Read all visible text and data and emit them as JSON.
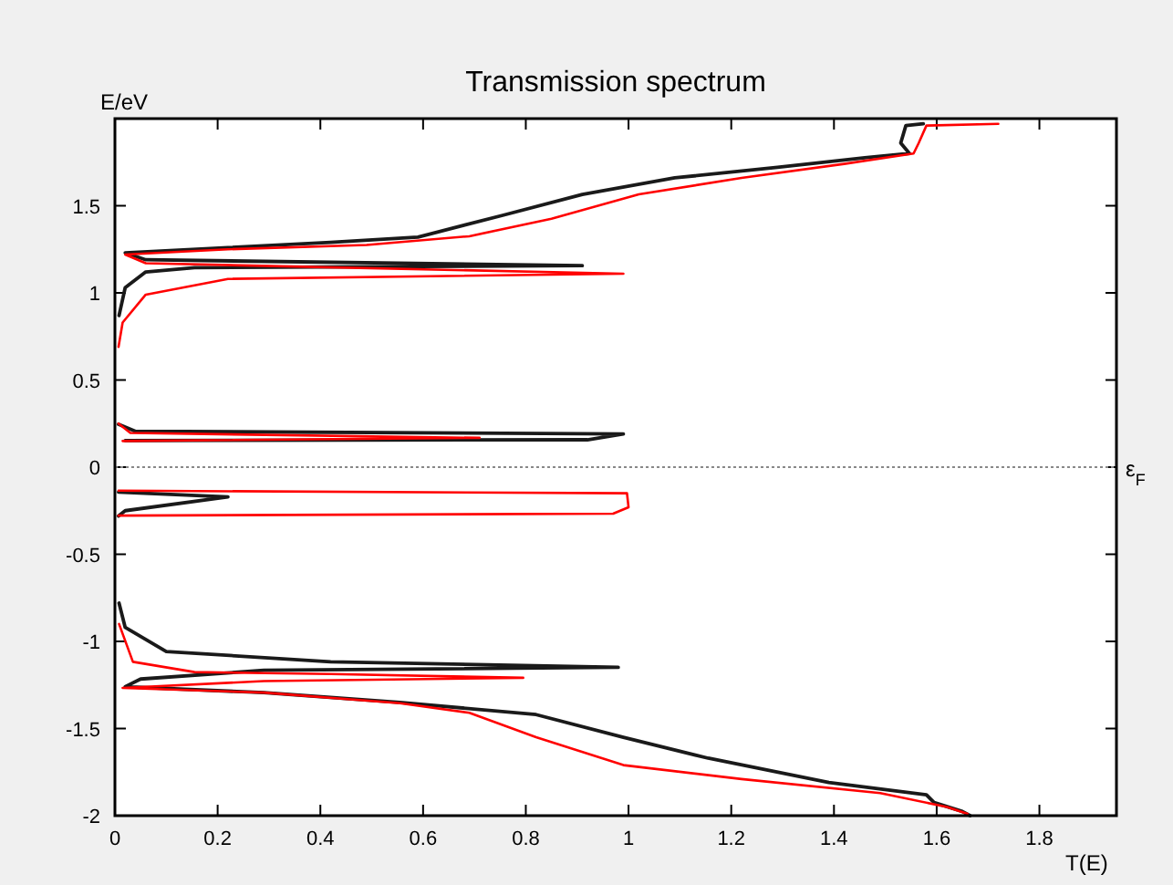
{
  "chart_data": {
    "type": "line",
    "title": "Transmission spectrum",
    "xlabel": "T(E)",
    "ylabel": "E/eV",
    "xlim": [
      0,
      1.95
    ],
    "ylim": [
      -2,
      2
    ],
    "xticks": [
      0,
      0.2,
      0.4,
      0.6,
      0.8,
      1,
      1.2,
      1.4,
      1.6,
      1.8
    ],
    "yticks": [
      -2,
      -1.5,
      -1,
      -0.5,
      0,
      0.5,
      1,
      1.5
    ],
    "ref_lines": [
      {
        "axis": "y",
        "value": 0,
        "label": "ε$_{F}$",
        "line_style": "dotted",
        "color": "#888888"
      }
    ],
    "series": [
      {
        "color": "#1a1a1a",
        "x": [
          1.574,
          1.54,
          1.53,
          1.547,
          1.46,
          1.29,
          1.09,
          0.91,
          0.755,
          0.59,
          0.42,
          0.22,
          0.02,
          0.06,
          0.91,
          0.155,
          0.06,
          0.02,
          0.008,
          null,
          0.007,
          0.04,
          0.99,
          0.92,
          0.02,
          null,
          0.007,
          0.22,
          0.02,
          0.007,
          null,
          0.008,
          0.02,
          0.1,
          0.42,
          0.98,
          0.29,
          0.05,
          0.02,
          0.29,
          0.555,
          0.82,
          0.99,
          1.155,
          1.39,
          1.58,
          1.595,
          1.65,
          1.665
        ],
        "values": [
          1.97,
          1.96,
          1.86,
          1.8,
          1.775,
          1.72,
          1.66,
          1.565,
          1.445,
          1.32,
          1.29,
          1.26,
          1.23,
          1.19,
          1.156,
          1.145,
          1.12,
          1.03,
          0.87,
          null,
          0.246,
          0.206,
          0.19,
          0.157,
          0.153,
          null,
          -0.143,
          -0.171,
          -0.25,
          -0.28,
          null,
          -0.78,
          -0.92,
          -1.058,
          -1.117,
          -1.149,
          -1.166,
          -1.216,
          -1.26,
          -1.294,
          -1.35,
          -1.42,
          -1.55,
          -1.67,
          -1.81,
          -1.88,
          -1.925,
          -1.976,
          -2
        ]
      },
      {
        "color": "#ff0000",
        "x": [
          1.72,
          1.58,
          1.565,
          1.555,
          1.42,
          1.22,
          1.02,
          0.85,
          0.69,
          0.49,
          0.22,
          0.02,
          0.06,
          0.99,
          0.22,
          0.06,
          0.015,
          0.007,
          null,
          0.007,
          0.03,
          0.71,
          0.015,
          null,
          0.007,
          0.997,
          1.0,
          0.97,
          0.007,
          null,
          0.008,
          0.035,
          0.155,
          0.42,
          0.795,
          0.29,
          0.015,
          0.29,
          0.555,
          0.69,
          0.82,
          0.99,
          1.22,
          1.49,
          1.62,
          1.66
        ],
        "values": [
          1.97,
          1.96,
          1.86,
          1.8,
          1.74,
          1.66,
          1.565,
          1.425,
          1.325,
          1.275,
          1.25,
          1.22,
          1.17,
          1.11,
          1.08,
          0.99,
          0.83,
          0.69,
          null,
          0.25,
          0.196,
          0.168,
          0.15,
          null,
          -0.135,
          -0.15,
          -0.23,
          -0.267,
          -0.278,
          null,
          -0.9,
          -1.117,
          -1.176,
          -1.187,
          -1.209,
          -1.228,
          -1.267,
          -1.294,
          -1.355,
          -1.41,
          -1.55,
          -1.71,
          -1.79,
          -1.87,
          -1.95,
          -1.99
        ]
      }
    ]
  }
}
